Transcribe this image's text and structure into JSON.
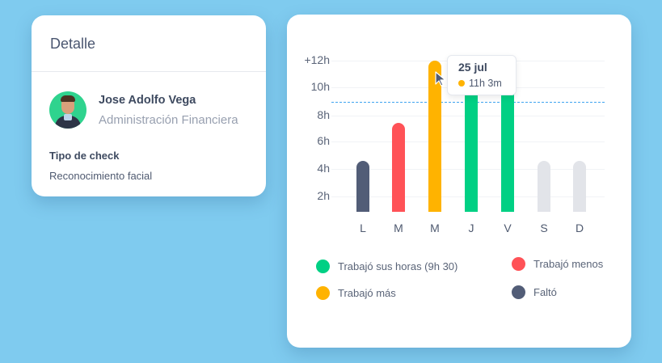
{
  "detail": {
    "title": "Detalle",
    "person": {
      "name": "Jose Adolfo Vega",
      "department": "Administración Financiera"
    },
    "check_label": "Tipo de check",
    "check_value": "Reconocimiento facial"
  },
  "tooltip": {
    "date": "25 jul",
    "value": "11h 3m",
    "color": "#ffb300"
  },
  "colors": {
    "worked_hours": "#00d084",
    "worked_less": "#ff5257",
    "worked_more": "#ffb300",
    "absent": "#525d77",
    "future": "#e2e4e9",
    "target_line": "#3fa4f0",
    "background": "#7fcbef"
  },
  "legend": [
    {
      "label": "Trabajó sus horas (9h 30)",
      "color": "#00d084"
    },
    {
      "label": "Trabajó menos",
      "color": "#ff5257"
    },
    {
      "label": "Trabajó más",
      "color": "#ffb300"
    },
    {
      "label": "Faltó",
      "color": "#525d77"
    }
  ],
  "chart_data": {
    "type": "bar",
    "title": "",
    "xlabel": "",
    "ylabel": "",
    "categories": [
      "L",
      "M",
      "M",
      "J",
      "V",
      "S",
      "D"
    ],
    "values": [
      3.7,
      6.5,
      11.05,
      9.5,
      9.3,
      3.7,
      3.7
    ],
    "bar_colors": [
      "#525d77",
      "#ff5257",
      "#ffb300",
      "#00d084",
      "#00d084",
      "#e2e4e9",
      "#e2e4e9"
    ],
    "bar_status": [
      "Faltó",
      "Trabajó menos",
      "Trabajó más",
      "Trabajó sus horas",
      "Trabajó sus horas",
      "placeholder",
      "placeholder"
    ],
    "yticks": [
      "2h",
      "4h",
      "6h",
      "8h",
      "10h",
      "+12h"
    ],
    "ylim": [
      0,
      12
    ],
    "reference_line": {
      "value": 9.5,
      "label": "9h 30",
      "style": "dashed"
    },
    "grid": true,
    "legend_position": "bottom"
  }
}
